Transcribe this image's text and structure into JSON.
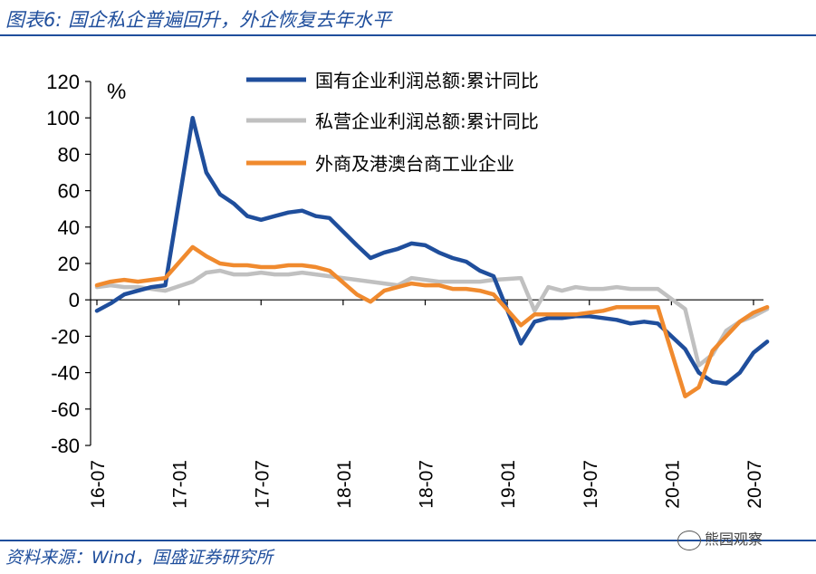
{
  "header": {
    "title": "图表6:  国企私企普遍回升，外企恢复去年水平"
  },
  "footer": {
    "source": "资料来源：Wind，国盛证券研究所",
    "watermark": "熊园观察"
  },
  "chart_data": {
    "type": "line",
    "unit_label": "%",
    "ylim": [
      -80,
      120
    ],
    "yticks": [
      120,
      100,
      80,
      60,
      40,
      20,
      0,
      -20,
      -40,
      -60,
      -80
    ],
    "x_range": [
      "16-07",
      "20-07"
    ],
    "xticks": [
      "16-07",
      "17-01",
      "17-07",
      "18-01",
      "18-07",
      "19-01",
      "19-07",
      "20-01",
      "20-07"
    ],
    "grid": false,
    "legend_position": "top",
    "series": [
      {
        "name": "国有企业利润总额:累计同比",
        "color": "#1f4e9c",
        "points": [
          [
            "16-07",
            -6
          ],
          [
            "16-08",
            -2
          ],
          [
            "16-09",
            3
          ],
          [
            "16-10",
            5
          ],
          [
            "16-11",
            7
          ],
          [
            "16-12",
            8
          ],
          [
            "17-02",
            100
          ],
          [
            "17-03",
            70
          ],
          [
            "17-04",
            58
          ],
          [
            "17-05",
            53
          ],
          [
            "17-06",
            46
          ],
          [
            "17-07",
            44
          ],
          [
            "17-08",
            46
          ],
          [
            "17-09",
            48
          ],
          [
            "17-10",
            49
          ],
          [
            "17-11",
            46
          ],
          [
            "17-12",
            45
          ],
          [
            "18-02",
            30
          ],
          [
            "18-03",
            23
          ],
          [
            "18-04",
            26
          ],
          [
            "18-05",
            28
          ],
          [
            "18-06",
            31
          ],
          [
            "18-07",
            30
          ],
          [
            "18-08",
            26
          ],
          [
            "18-09",
            23
          ],
          [
            "18-10",
            21
          ],
          [
            "18-11",
            16
          ],
          [
            "18-12",
            13
          ],
          [
            "19-02",
            -24
          ],
          [
            "19-03",
            -12
          ],
          [
            "19-04",
            -10
          ],
          [
            "19-05",
            -10
          ],
          [
            "19-06",
            -9
          ],
          [
            "19-07",
            -9
          ],
          [
            "19-08",
            -10
          ],
          [
            "19-09",
            -11
          ],
          [
            "19-10",
            -13
          ],
          [
            "19-11",
            -12
          ],
          [
            "19-12",
            -13
          ],
          [
            "20-02",
            -27
          ],
          [
            "20-03",
            -40
          ],
          [
            "20-04",
            -45
          ],
          [
            "20-05",
            -46
          ],
          [
            "20-06",
            -40
          ],
          [
            "20-07",
            -29
          ],
          [
            "20-08",
            -23
          ]
        ]
      },
      {
        "name": "私营企业利润总额:累计同比",
        "color": "#c0c0c0",
        "points": [
          [
            "16-07",
            7
          ],
          [
            "16-08",
            8
          ],
          [
            "16-09",
            7
          ],
          [
            "16-10",
            7
          ],
          [
            "16-11",
            6
          ],
          [
            "16-12",
            5
          ],
          [
            "17-02",
            10
          ],
          [
            "17-03",
            15
          ],
          [
            "17-04",
            16
          ],
          [
            "17-05",
            14
          ],
          [
            "17-06",
            14
          ],
          [
            "17-07",
            15
          ],
          [
            "17-08",
            14
          ],
          [
            "17-09",
            14
          ],
          [
            "17-10",
            15
          ],
          [
            "17-11",
            14
          ],
          [
            "17-12",
            13
          ],
          [
            "18-02",
            11
          ],
          [
            "18-03",
            10
          ],
          [
            "18-04",
            9
          ],
          [
            "18-05",
            8
          ],
          [
            "18-06",
            12
          ],
          [
            "18-07",
            11
          ],
          [
            "18-08",
            10
          ],
          [
            "18-09",
            10
          ],
          [
            "18-10",
            10
          ],
          [
            "18-11",
            10
          ],
          [
            "18-12",
            11
          ],
          [
            "19-02",
            12
          ],
          [
            "19-03",
            -6
          ],
          [
            "19-04",
            7
          ],
          [
            "19-05",
            5
          ],
          [
            "19-06",
            7
          ],
          [
            "19-07",
            6
          ],
          [
            "19-08",
            6
          ],
          [
            "19-09",
            7
          ],
          [
            "19-10",
            6
          ],
          [
            "19-11",
            6
          ],
          [
            "19-12",
            6
          ],
          [
            "20-02",
            -5
          ],
          [
            "20-03",
            -36
          ],
          [
            "20-04",
            -30
          ],
          [
            "20-05",
            -17
          ],
          [
            "20-06",
            -12
          ],
          [
            "20-07",
            -9
          ],
          [
            "20-08",
            -5
          ]
        ]
      },
      {
        "name": "外商及港澳台商工业企业",
        "color": "#f08a2e",
        "points": [
          [
            "16-07",
            8
          ],
          [
            "16-08",
            10
          ],
          [
            "16-09",
            11
          ],
          [
            "16-10",
            10
          ],
          [
            "16-11",
            11
          ],
          [
            "16-12",
            12
          ],
          [
            "17-02",
            29
          ],
          [
            "17-03",
            24
          ],
          [
            "17-04",
            20
          ],
          [
            "17-05",
            19
          ],
          [
            "17-06",
            19
          ],
          [
            "17-07",
            18
          ],
          [
            "17-08",
            18
          ],
          [
            "17-09",
            19
          ],
          [
            "17-10",
            19
          ],
          [
            "17-11",
            18
          ],
          [
            "17-12",
            16
          ],
          [
            "18-02",
            3
          ],
          [
            "18-03",
            -1
          ],
          [
            "18-04",
            5
          ],
          [
            "18-05",
            7
          ],
          [
            "18-06",
            9
          ],
          [
            "18-07",
            8
          ],
          [
            "18-08",
            8
          ],
          [
            "18-09",
            6
          ],
          [
            "18-10",
            6
          ],
          [
            "18-11",
            5
          ],
          [
            "18-12",
            3
          ],
          [
            "19-02",
            -14
          ],
          [
            "19-03",
            -8
          ],
          [
            "19-04",
            -8
          ],
          [
            "19-05",
            -8
          ],
          [
            "19-06",
            -8
          ],
          [
            "19-07",
            -7
          ],
          [
            "19-08",
            -6
          ],
          [
            "19-09",
            -4
          ],
          [
            "19-10",
            -4
          ],
          [
            "19-11",
            -4
          ],
          [
            "19-12",
            -4
          ],
          [
            "20-02",
            -53
          ],
          [
            "20-03",
            -48
          ],
          [
            "20-04",
            -28
          ],
          [
            "20-05",
            -20
          ],
          [
            "20-06",
            -12
          ],
          [
            "20-07",
            -7
          ],
          [
            "20-08",
            -4
          ]
        ]
      }
    ]
  }
}
